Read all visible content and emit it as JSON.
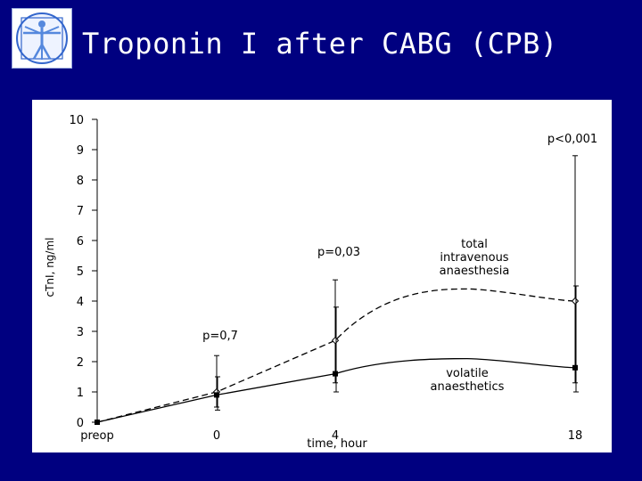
{
  "slide": {
    "title": "Troponin I after CABG (CPB)"
  },
  "colors": {
    "background": "#000080",
    "panel": "#ffffff",
    "title": "#ffffff",
    "line": "#000000"
  },
  "chart_data": {
    "type": "line",
    "title": "",
    "xlabel": "time, hour",
    "ylabel": "cTnI, ng/ml",
    "ylim": [
      0,
      10
    ],
    "yticks": [
      "0",
      "1",
      "2",
      "3",
      "4",
      "5",
      "6",
      "7",
      "8",
      "9",
      "10"
    ],
    "x_categories": [
      "preop",
      "0",
      "4",
      "18"
    ],
    "grid": false,
    "series": [
      {
        "name": "total intravenous anaesthesia",
        "style": "dashed",
        "marker": "open-diamond",
        "points": [
          {
            "x": "preop",
            "y": 0
          },
          {
            "x": "0",
            "y": 1.0,
            "err_low": 0.5,
            "err_high": 2.2
          },
          {
            "x": "4",
            "y": 2.7,
            "err_low": 1.3,
            "err_high": 4.7
          },
          {
            "x": "18",
            "y": 4.0,
            "err_low": 1.3,
            "err_high": 8.8
          }
        ]
      },
      {
        "name": "volatile anaesthetics",
        "style": "solid",
        "marker": "filled-square",
        "points": [
          {
            "x": "preop",
            "y": 0
          },
          {
            "x": "0",
            "y": 0.9,
            "err_low": 0.4,
            "err_high": 1.5
          },
          {
            "x": "4",
            "y": 1.6,
            "err_low": 1.0,
            "err_high": 3.8
          },
          {
            "x": "18",
            "y": 1.8,
            "err_low": 1.0,
            "err_high": 4.5
          }
        ]
      }
    ],
    "annotations": [
      "p=0,7",
      "p=0,03",
      "p<0,001"
    ],
    "series_labels": {
      "tiva": [
        "total",
        "intravenous",
        "anaesthesia"
      ],
      "volatile": [
        "volatile",
        "anaesthetics"
      ]
    }
  }
}
